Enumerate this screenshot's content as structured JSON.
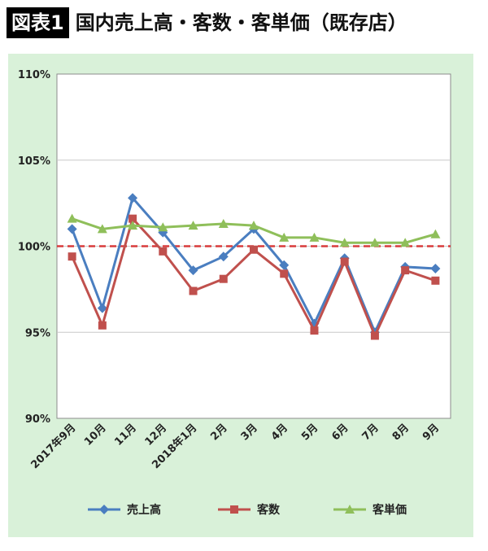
{
  "header": {
    "badge": "図表1",
    "title": "国内売上高・客数・客単価（既存店）"
  },
  "chart_data": {
    "type": "line",
    "categories": [
      "2017年9月",
      "10月",
      "11月",
      "12月",
      "2018年1月",
      "2月",
      "3月",
      "4月",
      "5月",
      "6月",
      "7月",
      "8月",
      "9月"
    ],
    "series": [
      {
        "name": "売上高",
        "color": "#4a7ec0",
        "marker": "diamond",
        "values": [
          101.0,
          96.4,
          102.8,
          100.8,
          98.6,
          99.4,
          101.0,
          98.9,
          95.5,
          99.3,
          95.0,
          98.8,
          98.7
        ]
      },
      {
        "name": "客数",
        "color": "#c0504d",
        "marker": "square",
        "values": [
          99.4,
          95.4,
          101.6,
          99.7,
          97.4,
          98.1,
          99.8,
          98.4,
          95.1,
          99.1,
          94.8,
          98.6,
          98.0
        ]
      },
      {
        "name": "客単価",
        "color": "#8fbf5a",
        "marker": "triangle",
        "values": [
          101.6,
          101.0,
          101.2,
          101.1,
          101.2,
          101.3,
          101.2,
          100.5,
          100.5,
          100.2,
          100.2,
          100.2,
          100.7
        ]
      }
    ],
    "reference_line": {
      "value": 100,
      "color": "#d83b3b",
      "style": "dashed"
    },
    "ylim": [
      90,
      110
    ],
    "yticks": [
      90,
      95,
      100,
      105,
      110
    ],
    "ytick_labels": [
      "90%",
      "95%",
      "100%",
      "105%",
      "110%"
    ],
    "grid": true,
    "legend_position": "bottom"
  }
}
